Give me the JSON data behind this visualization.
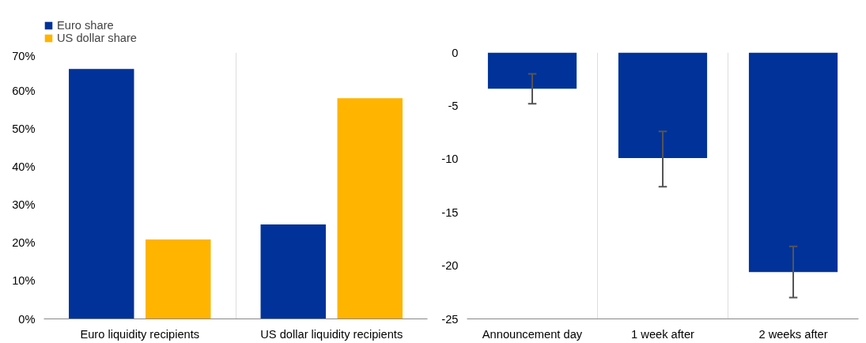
{
  "chart_data": [
    {
      "type": "bar",
      "categories": [
        "Euro liquidity recipients",
        "US dollar liquidity recipients"
      ],
      "series": [
        {
          "name": "Euro share",
          "color": "#003299",
          "values": [
            65.7,
            24.8
          ]
        },
        {
          "name": "US dollar share",
          "color": "#ffb400",
          "values": [
            20.9,
            58.0
          ]
        }
      ],
      "ylim": [
        0,
        70
      ],
      "yticks": [
        {
          "value": 0,
          "label": "0%"
        },
        {
          "value": 10,
          "label": "10%"
        },
        {
          "value": 20,
          "label": "20%"
        },
        {
          "value": 30,
          "label": "30%"
        },
        {
          "value": 40,
          "label": "40%"
        },
        {
          "value": 50,
          "label": "50%"
        },
        {
          "value": 60,
          "label": "60%"
        },
        {
          "value": 70,
          "label": "70%"
        }
      ],
      "grid": "x",
      "legend": "top"
    },
    {
      "type": "bar",
      "categories": [
        "Announcement day",
        "1 week after",
        "2 weeks after"
      ],
      "series": [
        {
          "color": "#003299",
          "values": [
            -3.4,
            -9.9,
            -20.6
          ],
          "errors": [
            [
              -4.8,
              -2.0
            ],
            [
              -12.6,
              -7.4
            ],
            [
              -23.0,
              -18.2
            ]
          ]
        }
      ],
      "ylim": [
        -25,
        0
      ],
      "yticks": [
        -25,
        -20,
        -15,
        -10,
        -5,
        0
      ],
      "grid": "x"
    }
  ]
}
